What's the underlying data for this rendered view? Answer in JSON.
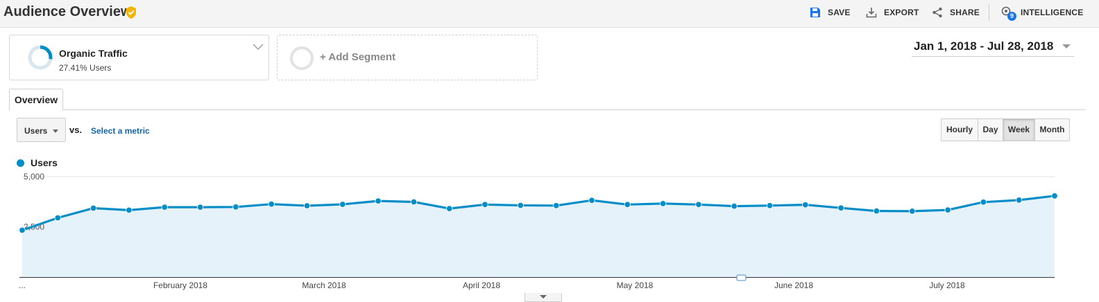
{
  "header": {
    "title": "Audience Overview",
    "tools": [
      {
        "label": "SAVE",
        "icon": "save-icon"
      },
      {
        "label": "EXPORT",
        "icon": "export-icon"
      },
      {
        "label": "SHARE",
        "icon": "share-icon"
      },
      {
        "label": "INTELLIGENCE",
        "icon": "intelligence-icon",
        "badge": "9"
      }
    ]
  },
  "segments": {
    "main": {
      "name": "Organic Traffic",
      "sub": "27.41% Users",
      "ring_fraction": 0.2741
    },
    "add_label": "+ Add Segment"
  },
  "date_range": "Jan 1, 2018 - Jul 28, 2018",
  "tab": "Overview",
  "metric": {
    "selected": "Users",
    "vs": "vs.",
    "select_link": "Select a metric"
  },
  "granularity": {
    "options": [
      "Hourly",
      "Day",
      "Week",
      "Month"
    ],
    "active": "Week"
  },
  "legend": "Users",
  "colors": {
    "series": "#058dc7",
    "area": "#e6f2f9",
    "accent": "#1565a8",
    "verified": "#f4b400"
  },
  "chart_data": {
    "type": "area",
    "series": [
      {
        "name": "Users",
        "values": [
          2330,
          2950,
          3430,
          3330,
          3480,
          3480,
          3490,
          3630,
          3550,
          3620,
          3790,
          3740,
          3410,
          3610,
          3570,
          3560,
          3820,
          3610,
          3660,
          3610,
          3530,
          3560,
          3600,
          3440,
          3290,
          3280,
          3340,
          3730,
          3830,
          4040
        ]
      }
    ],
    "x_labels": [
      "...",
      "February 2018",
      "March 2018",
      "April 2018",
      "May 2018",
      "June 2018",
      "July 2018"
    ],
    "y_ticks": [
      "5,000",
      "2,500"
    ],
    "ylim": [
      0,
      5000
    ],
    "grid": true
  }
}
